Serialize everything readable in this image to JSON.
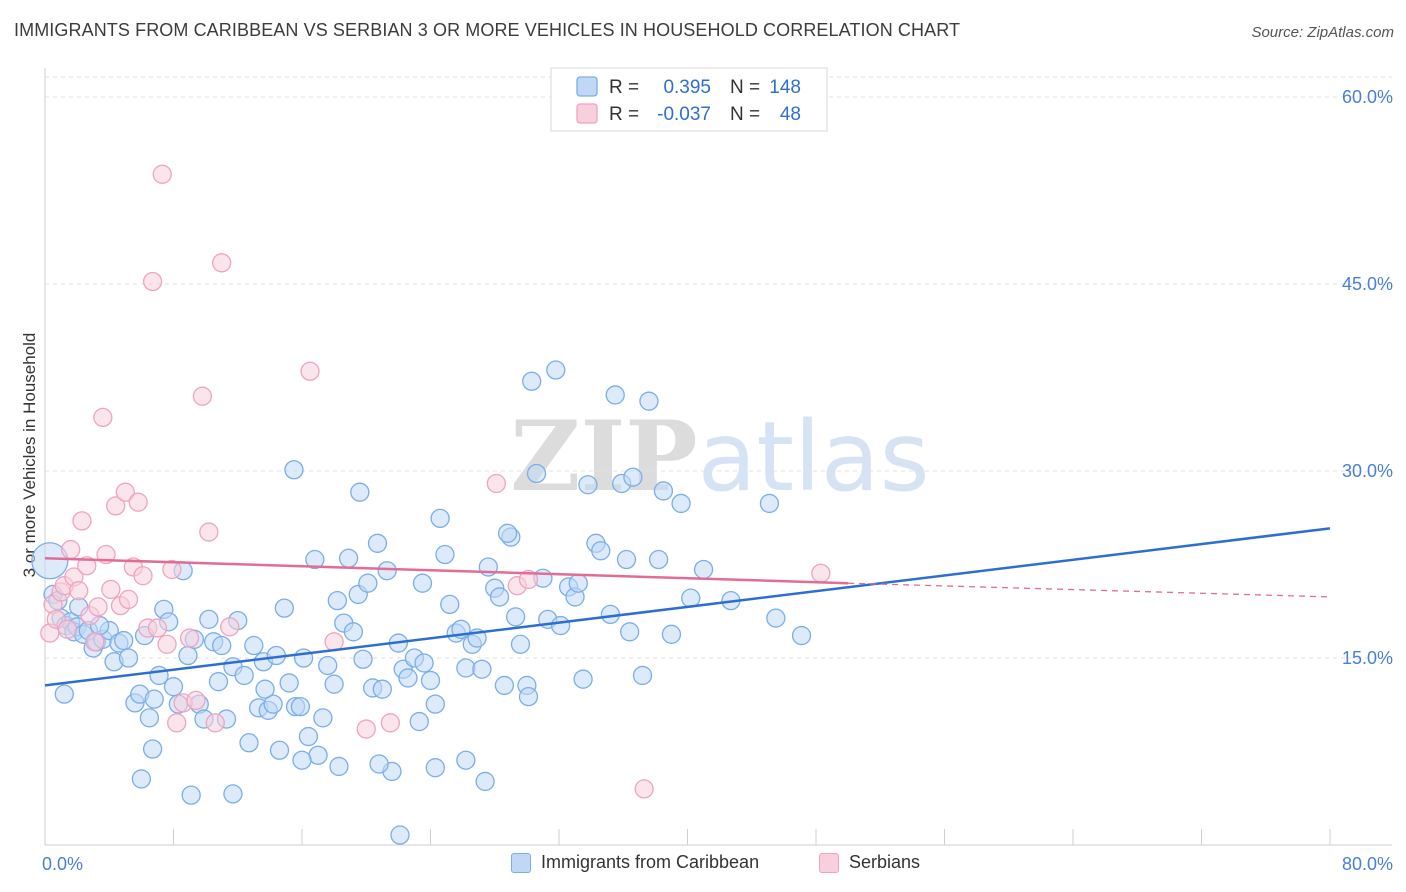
{
  "chart_data": {
    "type": "scatter",
    "title": "IMMIGRANTS FROM CARIBBEAN VS SERBIAN 3 OR MORE VEHICLES IN HOUSEHOLD CORRELATION CHART",
    "source": "Source: ZipAtlas.com",
    "xlabel": "",
    "ylabel": "3 or more Vehicles in Household",
    "xlim": [
      0,
      80
    ],
    "ylim": [
      0,
      60
    ],
    "x_tick_labels": [
      "0.0%",
      "80.0%"
    ],
    "y_ticks": [
      {
        "value": 15,
        "label": "15.0%"
      },
      {
        "value": 30,
        "label": "30.0%"
      },
      {
        "value": 45,
        "label": "45.0%"
      },
      {
        "value": 60,
        "label": "60.0%"
      }
    ],
    "grid": true,
    "watermark": "ZIPatlas",
    "legend": {
      "position": "top-center",
      "entries": [
        {
          "r_label": "R =",
          "r_value": "0.395",
          "n_label": "N =",
          "n_value": "148"
        },
        {
          "r_label": "R =",
          "r_value": "-0.037",
          "n_label": "N =",
          "n_value": "48"
        }
      ]
    },
    "series": [
      {
        "name": "Immigrants from Caribbean",
        "color": "#7aaee8",
        "fill": "#c0d8f5",
        "line_color": "#2d6fd0",
        "trend": {
          "x0": 0,
          "y0": 12.8,
          "x1": 80,
          "y1": 25.4
        },
        "points": [
          [
            0.3,
            22.8
          ],
          [
            0.5,
            20.1
          ],
          [
            0.8,
            19.6
          ],
          [
            1.0,
            18.2
          ],
          [
            1.3,
            17.6
          ],
          [
            1.6,
            17.9
          ],
          [
            1.8,
            17.1
          ],
          [
            2.0,
            17.5
          ],
          [
            2.4,
            16.9
          ],
          [
            2.7,
            17.2
          ],
          [
            3.0,
            15.8
          ],
          [
            3.2,
            16.3
          ],
          [
            3.6,
            16.5
          ],
          [
            4.0,
            17.2
          ],
          [
            4.3,
            14.7
          ],
          [
            4.6,
            16.2
          ],
          [
            4.9,
            16.4
          ],
          [
            5.2,
            15.0
          ],
          [
            5.6,
            11.4
          ],
          [
            5.9,
            12.1
          ],
          [
            6.2,
            16.8
          ],
          [
            6.5,
            10.2
          ],
          [
            6.8,
            11.7
          ],
          [
            7.1,
            13.6
          ],
          [
            7.4,
            18.9
          ],
          [
            7.7,
            17.9
          ],
          [
            8.0,
            12.7
          ],
          [
            8.3,
            11.3
          ],
          [
            8.6,
            22.0
          ],
          [
            8.9,
            15.2
          ],
          [
            9.3,
            16.5
          ],
          [
            9.6,
            11.3
          ],
          [
            9.9,
            10.1
          ],
          [
            10.2,
            18.1
          ],
          [
            10.5,
            16.3
          ],
          [
            10.8,
            13.1
          ],
          [
            11.0,
            16.0
          ],
          [
            11.3,
            10.1
          ],
          [
            11.7,
            14.3
          ],
          [
            12.0,
            18.0
          ],
          [
            12.4,
            13.6
          ],
          [
            12.7,
            8.2
          ],
          [
            13.0,
            16.0
          ],
          [
            13.3,
            11.0
          ],
          [
            13.6,
            14.7
          ],
          [
            13.9,
            10.8
          ],
          [
            14.2,
            11.3
          ],
          [
            14.4,
            15.2
          ],
          [
            14.6,
            7.6
          ],
          [
            14.9,
            19.0
          ],
          [
            15.2,
            13.0
          ],
          [
            15.6,
            11.1
          ],
          [
            15.9,
            11.1
          ],
          [
            16.1,
            15.0
          ],
          [
            16.4,
            8.7
          ],
          [
            16.8,
            22.9
          ],
          [
            17.0,
            7.2
          ],
          [
            17.3,
            10.2
          ],
          [
            17.6,
            14.4
          ],
          [
            18.0,
            12.9
          ],
          [
            18.2,
            19.6
          ],
          [
            18.6,
            17.8
          ],
          [
            18.9,
            23.0
          ],
          [
            19.2,
            17.1
          ],
          [
            19.5,
            20.1
          ],
          [
            19.8,
            14.9
          ],
          [
            20.1,
            21.0
          ],
          [
            20.4,
            12.6
          ],
          [
            20.7,
            24.2
          ],
          [
            21.0,
            12.5
          ],
          [
            21.3,
            22.0
          ],
          [
            21.6,
            5.9
          ],
          [
            22.0,
            16.2
          ],
          [
            22.3,
            14.1
          ],
          [
            22.6,
            13.4
          ],
          [
            23.0,
            15.0
          ],
          [
            23.3,
            9.9
          ],
          [
            23.6,
            14.6
          ],
          [
            24.0,
            13.2
          ],
          [
            24.3,
            11.3
          ],
          [
            24.6,
            26.2
          ],
          [
            24.9,
            23.3
          ],
          [
            25.2,
            19.3
          ],
          [
            25.6,
            17.0
          ],
          [
            25.9,
            17.3
          ],
          [
            26.2,
            14.2
          ],
          [
            26.6,
            16.1
          ],
          [
            26.9,
            16.6
          ],
          [
            27.2,
            14.1
          ],
          [
            27.6,
            22.3
          ],
          [
            28.0,
            20.6
          ],
          [
            28.3,
            19.9
          ],
          [
            28.6,
            12.8
          ],
          [
            29.0,
            24.7
          ],
          [
            29.3,
            18.3
          ],
          [
            29.6,
            16.1
          ],
          [
            30.0,
            12.8
          ],
          [
            30.3,
            37.2
          ],
          [
            30.6,
            29.8
          ],
          [
            31.0,
            21.4
          ],
          [
            31.3,
            18.1
          ],
          [
            31.8,
            38.1
          ],
          [
            32.1,
            17.6
          ],
          [
            32.6,
            20.7
          ],
          [
            33.0,
            19.9
          ],
          [
            33.5,
            13.3
          ],
          [
            33.8,
            28.9
          ],
          [
            34.3,
            24.2
          ],
          [
            34.6,
            23.6
          ],
          [
            35.2,
            18.5
          ],
          [
            35.5,
            36.1
          ],
          [
            35.9,
            29.0
          ],
          [
            36.2,
            22.9
          ],
          [
            36.6,
            29.5
          ],
          [
            37.2,
            13.6
          ],
          [
            37.6,
            35.6
          ],
          [
            38.5,
            28.4
          ],
          [
            39.0,
            16.9
          ],
          [
            39.6,
            27.4
          ],
          [
            40.2,
            19.8
          ],
          [
            41.0,
            22.1
          ],
          [
            42.7,
            19.6
          ],
          [
            45.1,
            27.4
          ],
          [
            45.5,
            18.2
          ],
          [
            47.1,
            16.8
          ],
          [
            1.2,
            12.1
          ],
          [
            2.1,
            19.1
          ],
          [
            3.4,
            17.6
          ],
          [
            6.0,
            5.3
          ],
          [
            9.1,
            4.0
          ],
          [
            11.7,
            4.1
          ],
          [
            16.0,
            6.8
          ],
          [
            18.3,
            6.3
          ],
          [
            20.8,
            6.5
          ],
          [
            22.1,
            0.8
          ],
          [
            24.3,
            6.2
          ],
          [
            26.2,
            6.8
          ],
          [
            27.4,
            5.1
          ],
          [
            6.7,
            7.7
          ],
          [
            13.7,
            12.5
          ],
          [
            15.5,
            30.1
          ],
          [
            19.6,
            28.3
          ],
          [
            23.5,
            21.0
          ],
          [
            28.8,
            25.0
          ],
          [
            30.1,
            11.9
          ],
          [
            33.2,
            21.0
          ],
          [
            36.4,
            17.1
          ],
          [
            38.2,
            22.9
          ]
        ]
      },
      {
        "name": "Serbians",
        "color": "#f0a3bd",
        "fill": "#f8cfdc",
        "line_color": "#e36c97",
        "trend": {
          "x0": 0,
          "y0": 23.0,
          "x1": 50,
          "y1": 21.0
        },
        "trend_dashed": {
          "x0": 50,
          "y0": 21.0,
          "x1": 80,
          "y1": 19.9
        },
        "points": [
          [
            0.3,
            17.0
          ],
          [
            0.5,
            19.3
          ],
          [
            0.7,
            18.1
          ],
          [
            1.0,
            20.3
          ],
          [
            1.2,
            20.8
          ],
          [
            1.4,
            17.3
          ],
          [
            1.6,
            23.7
          ],
          [
            1.8,
            21.5
          ],
          [
            2.1,
            20.4
          ],
          [
            2.3,
            26.0
          ],
          [
            2.6,
            22.4
          ],
          [
            2.8,
            18.4
          ],
          [
            3.1,
            16.3
          ],
          [
            3.3,
            19.1
          ],
          [
            3.6,
            34.3
          ],
          [
            3.8,
            23.3
          ],
          [
            4.1,
            20.5
          ],
          [
            4.4,
            27.2
          ],
          [
            4.7,
            19.2
          ],
          [
            5.0,
            28.3
          ],
          [
            5.2,
            19.7
          ],
          [
            5.5,
            22.3
          ],
          [
            5.8,
            27.5
          ],
          [
            6.1,
            21.6
          ],
          [
            6.4,
            17.4
          ],
          [
            6.7,
            45.2
          ],
          [
            7.0,
            17.4
          ],
          [
            7.3,
            53.8
          ],
          [
            7.6,
            16.1
          ],
          [
            7.9,
            22.1
          ],
          [
            8.2,
            9.8
          ],
          [
            8.6,
            11.4
          ],
          [
            9.0,
            16.6
          ],
          [
            9.4,
            11.6
          ],
          [
            9.8,
            36.0
          ],
          [
            10.2,
            25.1
          ],
          [
            10.6,
            9.8
          ],
          [
            11.0,
            46.7
          ],
          [
            11.5,
            17.5
          ],
          [
            16.5,
            38.0
          ],
          [
            18.0,
            16.3
          ],
          [
            20.0,
            9.3
          ],
          [
            21.5,
            9.8
          ],
          [
            28.1,
            29.0
          ],
          [
            29.4,
            20.8
          ],
          [
            30.1,
            21.3
          ],
          [
            37.3,
            4.5
          ],
          [
            48.3,
            21.8
          ]
        ]
      }
    ]
  },
  "bottom_legend": [
    {
      "label": "Immigrants from Caribbean"
    },
    {
      "label": "Serbians"
    }
  ]
}
